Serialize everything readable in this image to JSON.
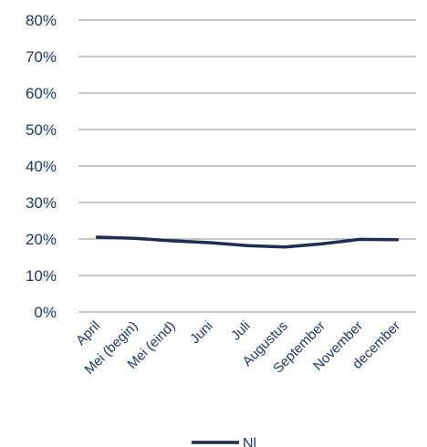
{
  "chart_data": {
    "type": "line",
    "title": "",
    "xlabel": "",
    "ylabel": "",
    "categories": [
      "April",
      "Mei (begin)",
      "Mei (eind)",
      "Juni",
      "Juli",
      "Augustus",
      "September",
      "November",
      "december"
    ],
    "y_ticks": [
      "0%",
      "10%",
      "20%",
      "30%",
      "40%",
      "50%",
      "60%",
      "70%",
      "80%"
    ],
    "ylim": [
      0,
      80
    ],
    "grid": true,
    "legend_position": "bottom",
    "series": [
      {
        "name": "Nl",
        "color": "#1f2d54",
        "values": [
          20.5,
          20.2,
          19.5,
          19.0,
          18.2,
          17.8,
          18.7,
          19.9,
          19.8
        ]
      }
    ]
  }
}
